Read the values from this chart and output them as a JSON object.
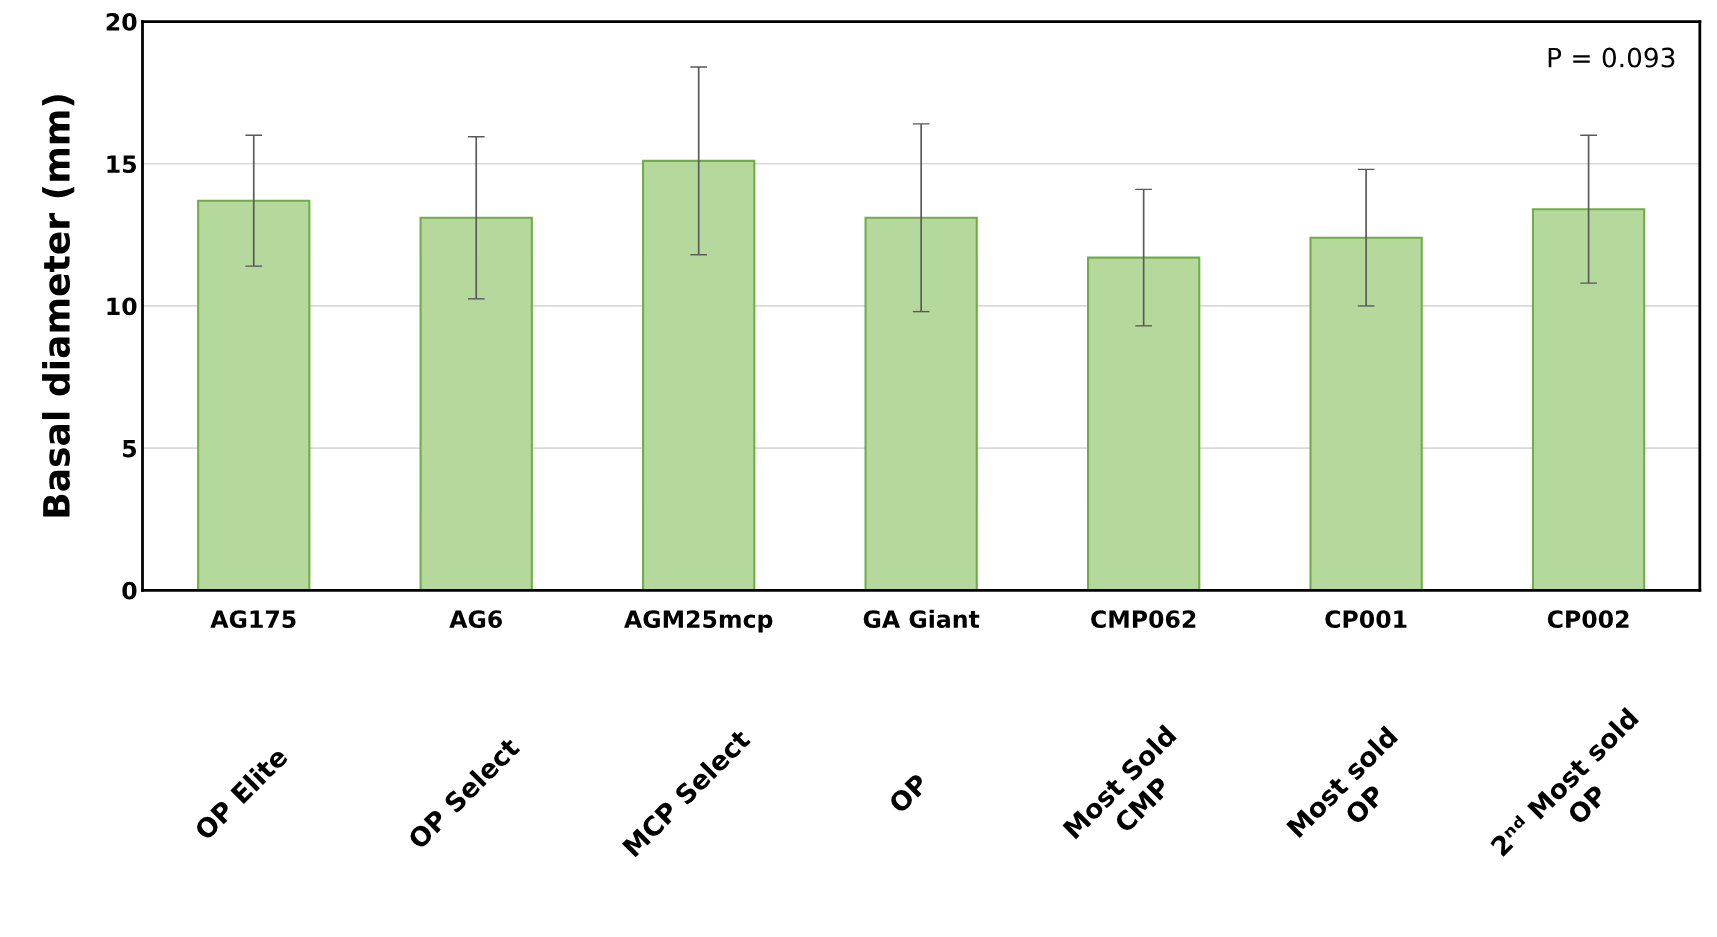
{
  "chart_data": {
    "type": "bar",
    "ylabel": "Basal diameter (mm)",
    "categories": [
      "AG175",
      "AG6",
      "AGM25mcp",
      "GA Giant",
      "CMP062",
      "CP001",
      "CP002"
    ],
    "values": [
      13.7,
      13.1,
      15.1,
      13.1,
      11.7,
      12.4,
      13.4
    ],
    "errors": [
      2.3,
      2.85,
      3.3,
      3.3,
      2.4,
      2.4,
      2.6
    ],
    "color": "#b5d99c",
    "ylim": [
      0,
      20
    ],
    "yticks": [
      0,
      5,
      10,
      15,
      20
    ],
    "grid": "y",
    "annotations": [
      "P = 0.093",
      "OP Elite",
      "OP Select",
      "MCP Select",
      "OP",
      "Most Sold\nCMP",
      "Most sold\nOP",
      "2ⁿᵈ Most sold\nOP"
    ]
  }
}
